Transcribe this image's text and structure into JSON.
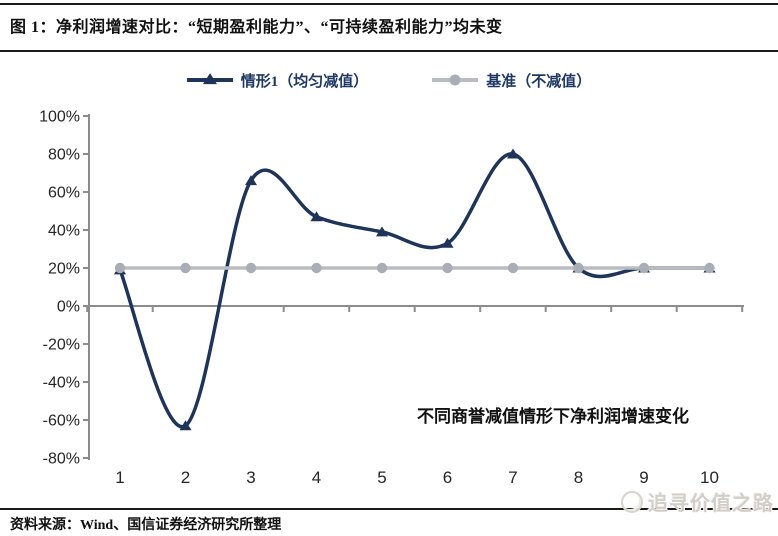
{
  "figure": {
    "title": "图 1：净利润增速对比：“短期盈利能力”、“可持续盈利能力”均未变",
    "source": "资料来源：Wind、国信证券经济研究所整理",
    "watermark": "追寻价值之路"
  },
  "chart_data": {
    "type": "line",
    "title": "净利润增速对比",
    "categories": [
      "1",
      "2",
      "3",
      "4",
      "5",
      "6",
      "7",
      "8",
      "9",
      "10"
    ],
    "series": [
      {
        "name": "情形1（均匀减值）",
        "values": [
          19,
          -63,
          66,
          47,
          39,
          33,
          80,
          20,
          20,
          20
        ],
        "color": "#1f3459",
        "marker": "triangle",
        "smooth": true
      },
      {
        "name": "基准（不减值）",
        "values": [
          20,
          20,
          20,
          20,
          20,
          20,
          20,
          20,
          20,
          20
        ],
        "color": "#b9bcc1",
        "marker_color": "#a9adb5",
        "marker": "circle",
        "smooth": false
      }
    ],
    "ylim": [
      -80,
      100
    ],
    "ytick_step": 20,
    "ytick_labels": [
      "100%",
      "80%",
      "60%",
      "40%",
      "20%",
      "0%",
      "-20%",
      "-40%",
      "-60%",
      "-80%"
    ],
    "xlabel": "",
    "ylabel": "",
    "grid": false,
    "legend_position": "top",
    "annotation": "不同商誉减值情形下净利润增速变化",
    "axis_color": "#8c8c8c",
    "tick_label_color": "#262626"
  }
}
